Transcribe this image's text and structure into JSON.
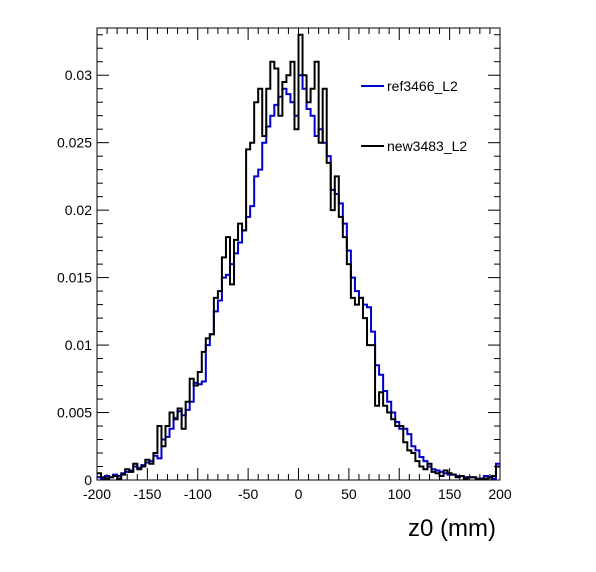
{
  "chart_data": {
    "type": "step",
    "title": "",
    "xlabel": "z0 (mm)",
    "ylabel": "",
    "xlim": [
      -200,
      200
    ],
    "ylim": [
      0,
      0.0335
    ],
    "x_ticks": [
      -200,
      -150,
      -100,
      -50,
      0,
      50,
      100,
      150,
      200
    ],
    "x_tick_labels": [
      "-200",
      "-150",
      "-100",
      "-50",
      "0",
      "50",
      "100",
      "150",
      "200"
    ],
    "y_ticks": [
      0,
      0.005,
      0.01,
      0.015,
      0.02,
      0.025,
      0.03
    ],
    "y_tick_labels": [
      "0",
      "0.005",
      "0.01",
      "0.015",
      "0.02",
      "0.025",
      "0.03"
    ],
    "grid": false,
    "legend_position": "top-right",
    "bin_edges_start": -200,
    "bin_width": 4,
    "series": [
      {
        "name": "ref3466_L2",
        "color": "#0000cc",
        "values": [
          0.0002,
          0.0001,
          0.0003,
          0.0002,
          0.0004,
          0.0003,
          0.0005,
          0.0006,
          0.0007,
          0.001,
          0.0009,
          0.0011,
          0.0013,
          0.0014,
          0.0018,
          0.0016,
          0.003,
          0.0032,
          0.0038,
          0.0046,
          0.0051,
          0.0048,
          0.0052,
          0.0058,
          0.0072,
          0.0071,
          0.0073,
          0.01,
          0.0108,
          0.0125,
          0.0133,
          0.015,
          0.0152,
          0.016,
          0.0168,
          0.0176,
          0.0185,
          0.0195,
          0.0203,
          0.0225,
          0.023,
          0.025,
          0.0262,
          0.027,
          0.0278,
          0.0284,
          0.029,
          0.0286,
          0.028,
          0.027,
          0.03,
          0.029,
          0.0275,
          0.027,
          0.0255,
          0.026,
          0.025,
          0.024,
          0.0215,
          0.0212,
          0.0205,
          0.019,
          0.017,
          0.015,
          0.014,
          0.0135,
          0.013,
          0.0128,
          0.011,
          0.0085,
          0.0078,
          0.0066,
          0.0058,
          0.005,
          0.0043,
          0.0038,
          0.0038,
          0.0034,
          0.0025,
          0.0022,
          0.0017,
          0.0014,
          0.001,
          0.0008,
          0.0007,
          0.0006,
          0.0005,
          0.0004,
          0.0004,
          0.0003,
          0.0003,
          0.0002,
          0.0002,
          0.0002,
          0.0001,
          0.0001,
          0.0003,
          0.0002,
          0.0001,
          0.0012
        ]
      },
      {
        "name": "new3483_L2",
        "color": "#000000",
        "values": [
          0.0005,
          0.0002,
          0.0001,
          0.0002,
          0.0003,
          0.0001,
          0.0004,
          0.0008,
          0.0006,
          0.0012,
          0.0008,
          0.001,
          0.0015,
          0.0012,
          0.002,
          0.004,
          0.0025,
          0.004,
          0.005,
          0.0045,
          0.0053,
          0.0038,
          0.0058,
          0.0075,
          0.007,
          0.008,
          0.0095,
          0.0105,
          0.0108,
          0.0135,
          0.014,
          0.0165,
          0.018,
          0.0145,
          0.0178,
          0.019,
          0.0185,
          0.0245,
          0.025,
          0.028,
          0.029,
          0.0255,
          0.029,
          0.031,
          0.0305,
          0.027,
          0.0295,
          0.03,
          0.031,
          0.026,
          0.033,
          0.03,
          0.028,
          0.029,
          0.031,
          0.025,
          0.029,
          0.0235,
          0.02,
          0.0225,
          0.0195,
          0.018,
          0.016,
          0.0135,
          0.013,
          0.0135,
          0.012,
          0.01,
          0.01,
          0.0055,
          0.0065,
          0.0055,
          0.005,
          0.0045,
          0.004,
          0.004,
          0.0028,
          0.0022,
          0.002,
          0.0014,
          0.001,
          0.0008,
          0.0012,
          0.0006,
          0.0005,
          0.0003,
          0.0007,
          0.0005,
          0.0004,
          0.0002,
          0.0003,
          0.0001,
          0.0002,
          0.0002,
          0.0001,
          0.0001,
          0.0001,
          0.0002,
          0.0003,
          0.001
        ]
      }
    ]
  }
}
